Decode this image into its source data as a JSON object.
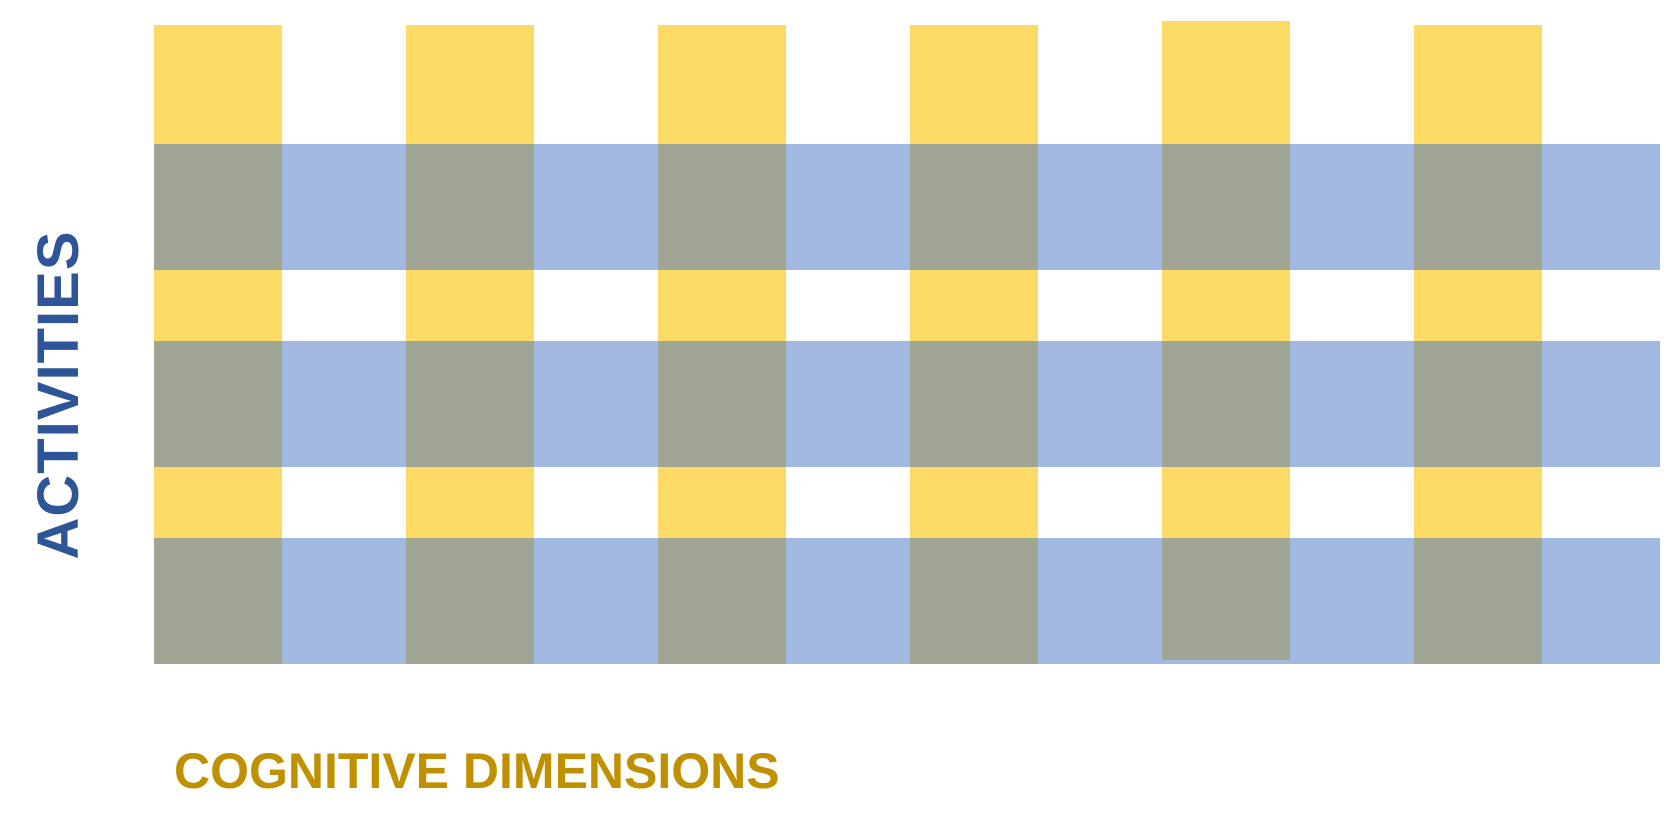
{
  "labels": {
    "y_axis": "ACTIVITIES",
    "x_axis": "COGNITIVE DIMENSIONS"
  },
  "colors": {
    "column_yellow": "#FDD966",
    "row_blue": "#A1B8E1",
    "overlap_gray": "#A1A594",
    "y_label": "#2E5597",
    "x_label": "#BF9000",
    "background": "#FFFFFF"
  },
  "grid": {
    "column_count": 6,
    "row_band_count": 3
  }
}
